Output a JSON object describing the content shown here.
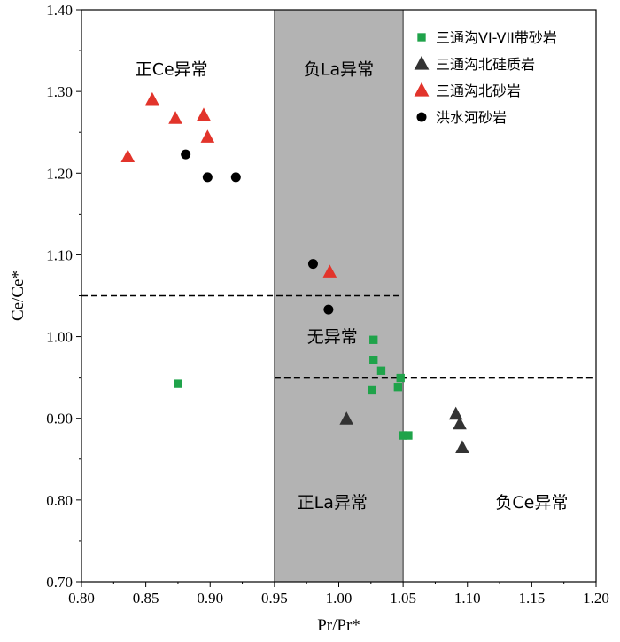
{
  "chart_data": {
    "type": "scatter",
    "xlabel": "Pr/Pr*",
    "ylabel": "Ce/Ce*",
    "xlim": [
      0.8,
      1.2
    ],
    "ylim": [
      0.7,
      1.4
    ],
    "x_ticks": [
      "0.80",
      "0.85",
      "0.90",
      "0.95",
      "1.00",
      "1.05",
      "1.10",
      "1.15",
      "1.20"
    ],
    "y_ticks": [
      "0.70",
      "0.80",
      "0.90",
      "1.00",
      "1.10",
      "1.20",
      "1.30",
      "1.40"
    ],
    "grid": false,
    "legend_position": "top-right",
    "shaded_band": {
      "x_from": 0.95,
      "x_to": 1.05,
      "color": "#b3b3b3"
    },
    "reference_lines": [
      {
        "orientation": "horizontal",
        "y": 1.05,
        "x_from": 0.8,
        "x_to": 1.05,
        "style": "dashed"
      },
      {
        "orientation": "horizontal",
        "y": 0.95,
        "x_from": 0.95,
        "x_to": 1.2,
        "style": "dashed"
      }
    ],
    "region_labels": [
      {
        "text": "正Ce异常",
        "x": 0.87,
        "y": 1.32
      },
      {
        "text": "负La异常",
        "x": 1.0,
        "y": 1.32
      },
      {
        "text": "无异常",
        "x": 0.995,
        "y": 0.993
      },
      {
        "text": "正La异常",
        "x": 0.995,
        "y": 0.79
      },
      {
        "text": "负Ce异常",
        "x": 1.15,
        "y": 0.79
      }
    ],
    "series": [
      {
        "name": "三通沟VI-VII带砂岩",
        "marker": "square",
        "color": "#1fa34a",
        "points": [
          [
            0.875,
            0.943
          ],
          [
            1.027,
            0.996
          ],
          [
            1.027,
            0.971
          ],
          [
            1.033,
            0.958
          ],
          [
            1.026,
            0.935
          ],
          [
            1.048,
            0.949
          ],
          [
            1.046,
            0.938
          ],
          [
            1.05,
            0.879
          ],
          [
            1.054,
            0.879
          ]
        ]
      },
      {
        "name": "三通沟北硅质岩",
        "marker": "triangle",
        "color": "#333333",
        "points": [
          [
            1.006,
            0.899
          ],
          [
            1.091,
            0.905
          ],
          [
            1.094,
            0.893
          ],
          [
            1.096,
            0.864
          ]
        ]
      },
      {
        "name": "三通沟北砂岩",
        "marker": "triangle",
        "color": "#e2342b",
        "points": [
          [
            0.836,
            1.22
          ],
          [
            0.855,
            1.29
          ],
          [
            0.873,
            1.267
          ],
          [
            0.895,
            1.271
          ],
          [
            0.898,
            1.244
          ],
          [
            0.993,
            1.079
          ]
        ]
      },
      {
        "name": "洪水河砂岩",
        "marker": "circle",
        "color": "#000000",
        "points": [
          [
            0.881,
            1.223
          ],
          [
            0.898,
            1.195
          ],
          [
            0.92,
            1.195
          ],
          [
            0.98,
            1.089
          ],
          [
            0.992,
            1.033
          ]
        ]
      }
    ]
  }
}
